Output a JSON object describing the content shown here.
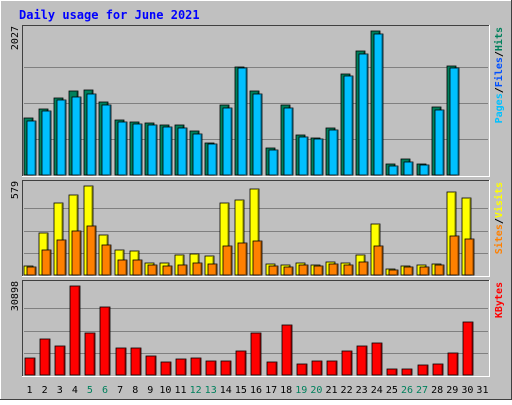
{
  "chart_data": {
    "type": "bar",
    "title": "Daily usage for June 2021",
    "categories": [
      "1",
      "2",
      "3",
      "4",
      "5",
      "6",
      "7",
      "8",
      "9",
      "10",
      "11",
      "12",
      "13",
      "14",
      "15",
      "16",
      "17",
      "18",
      "19",
      "20",
      "21",
      "22",
      "23",
      "24",
      "25",
      "26",
      "27",
      "28",
      "29",
      "30",
      "31"
    ],
    "weekend_days": [
      "5",
      "6",
      "12",
      "13",
      "19",
      "20",
      "26",
      "27"
    ],
    "panels": [
      {
        "id": "hits-files-pages",
        "ymax_label": "2027",
        "ymax": 2027,
        "series": [
          {
            "name": "Hits",
            "color": "#00805c",
            "values": [
              800,
              925,
              1090,
              1180,
              1200,
              1030,
              770,
              750,
              730,
              710,
              700,
              620,
              450,
              980,
              1520,
              1185,
              380,
              980,
              570,
              520,
              660,
              1420,
              1740,
              2027,
              160,
              230,
              160,
              960,
              1540,
              0,
              0
            ]
          },
          {
            "name": "Files",
            "color": "#00c0ff",
            "values": [
              760,
              900,
              1060,
              1100,
              1140,
              990,
              740,
              720,
              700,
              680,
              660,
              580,
              430,
              950,
              1500,
              1140,
              350,
              950,
              540,
              500,
              630,
              1400,
              1700,
              1990,
              130,
              190,
              140,
              920,
              1510,
              0,
              0
            ]
          },
          {
            "name": "Pages",
            "color": "#00c0ff",
            "values": [
              0,
              0,
              0,
              0,
              0,
              0,
              0,
              0,
              0,
              0,
              0,
              0,
              0,
              0,
              0,
              0,
              0,
              0,
              0,
              0,
              0,
              0,
              0,
              0,
              0,
              0,
              0,
              0,
              0,
              0,
              0
            ]
          }
        ],
        "legend_colors": [
          "#00c0ff",
          "#000000",
          "#0050ff",
          "#000000",
          "#00805c"
        ]
      },
      {
        "id": "visits-sites",
        "ymax_label": "579",
        "ymax": 579,
        "series": [
          {
            "name": "Visits",
            "color": "#ffff00",
            "values": [
              60,
              270,
              470,
              520,
              579,
              260,
              160,
              155,
              80,
              75,
              130,
              135,
              125,
              470,
              490,
              560,
              70,
              65,
              75,
              65,
              85,
              80,
              130,
              330,
              40,
              60,
              65,
              70,
              540,
              500,
              0
            ]
          },
          {
            "name": "Sites",
            "color": "#ff8000",
            "values": [
              55,
              165,
              225,
              285,
              320,
              195,
              100,
              95,
              65,
              60,
              65,
              80,
              70,
              190,
              205,
              220,
              60,
              55,
              65,
              60,
              70,
              65,
              85,
              190,
              35,
              50,
              55,
              65,
              255,
              235,
              0
            ]
          }
        ],
        "legend_colors": [
          "#ff8000",
          "#000000",
          "#ffff00"
        ]
      },
      {
        "id": "kbytes",
        "ymax_label": "30898",
        "ymax": 30898,
        "series": [
          {
            "name": "KBytes",
            "color": "#ff0000",
            "values": [
              5800,
              12500,
              10000,
              30898,
              14500,
              23500,
              9500,
              9500,
              6500,
              4500,
              5500,
              6000,
              5000,
              5000,
              8500,
              14500,
              4500,
              17500,
              3700,
              4700,
              4700,
              8500,
              10000,
              11000,
              2200,
              2200,
              3400,
              3800,
              7500,
              18500,
              0
            ]
          }
        ],
        "legend_colors": [
          "#ff0000"
        ]
      }
    ],
    "grid": true
  }
}
